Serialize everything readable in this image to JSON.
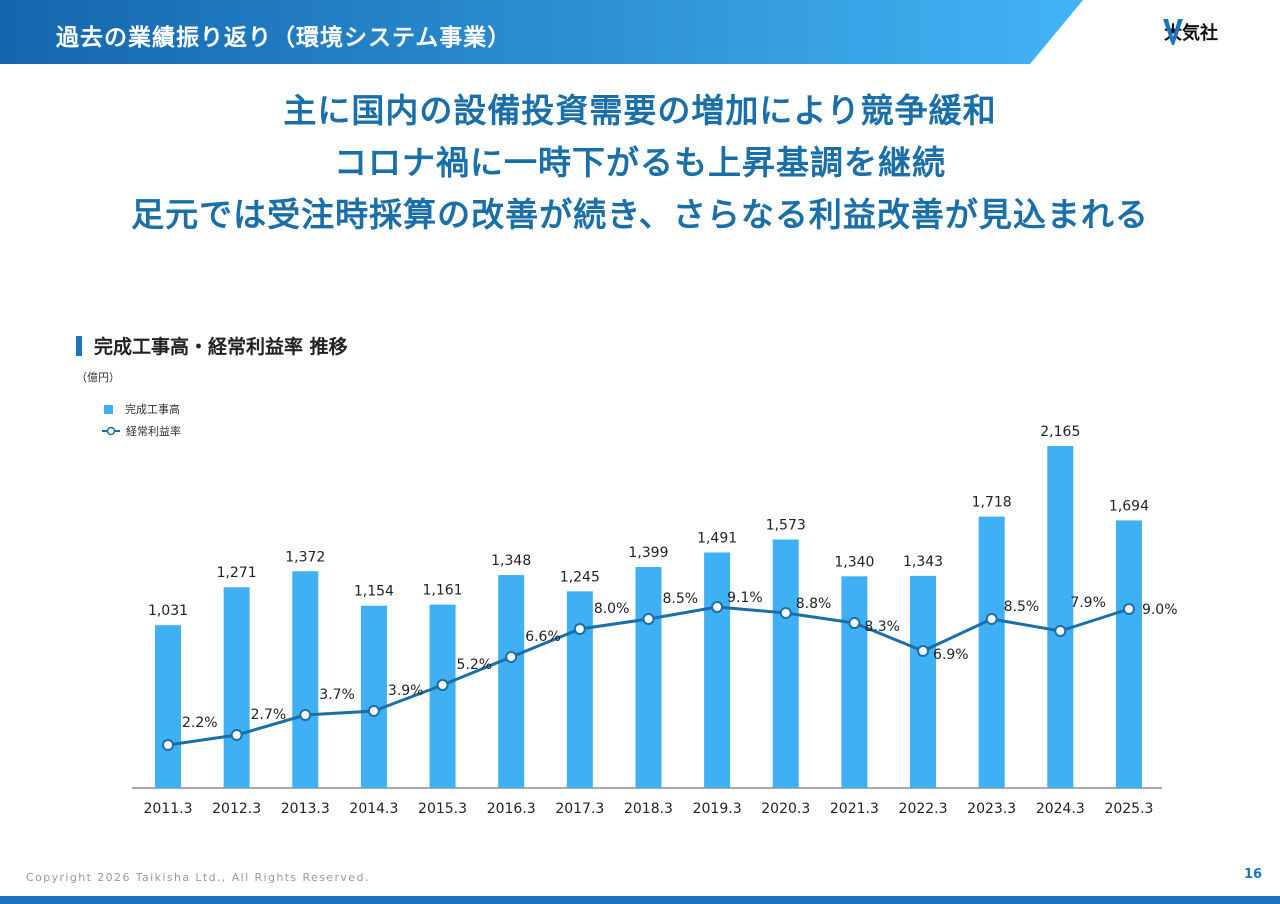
{
  "header": {
    "title": "過去の業績振り返り（環境システム事業）",
    "logo_text": "大気社",
    "accent_color": "#1e73be",
    "accent_light": "#3fb0f4"
  },
  "headline": {
    "line1": "主に国内の設備投資需要の増加により競争緩和",
    "line2": "コロナ禍に一時下がるも上昇基調を継続",
    "line3": "足元では受注時採算の改善が続き、さらなる利益改善が見込まれる"
  },
  "section": {
    "title": "完成工事高・経常利益率 推移",
    "unit": "（億円）"
  },
  "legend": {
    "bar_label": "完成工事高",
    "line_label": "経常利益率"
  },
  "chart_data": {
    "type": "bar",
    "title": "完成工事高・経常利益率 推移",
    "ylabel": "（億円）",
    "categories": [
      "2011.3",
      "2012.3",
      "2013.3",
      "2014.3",
      "2015.3",
      "2016.3",
      "2017.3",
      "2018.3",
      "2019.3",
      "2020.3",
      "2021.3",
      "2022.3",
      "2023.3",
      "2024.3",
      "2025.3"
    ],
    "series": [
      {
        "name": "完成工事高",
        "type": "bar",
        "values": [
          1031,
          1271,
          1372,
          1154,
          1161,
          1348,
          1245,
          1399,
          1491,
          1573,
          1340,
          1343,
          1718,
          2165,
          1694
        ],
        "labels": [
          "1,031",
          "1,271",
          "1,372",
          "1,154",
          "1,161",
          "1,348",
          "1,245",
          "1,399",
          "1,491",
          "1,573",
          "1,340",
          "1,343",
          "1,718",
          "2,165",
          "1,694"
        ],
        "color": "#3fb0f4"
      },
      {
        "name": "経常利益率",
        "type": "line",
        "values": [
          2.2,
          2.7,
          3.7,
          3.9,
          5.2,
          6.6,
          8.0,
          8.5,
          9.1,
          8.8,
          8.3,
          6.9,
          8.5,
          7.9,
          9.0
        ],
        "labels": [
          "2.2%",
          "2.7%",
          "3.7%",
          "3.9%",
          "5.2%",
          "6.6%",
          "8.0%",
          "8.5%",
          "9.1%",
          "8.8%",
          "8.3%",
          "6.9%",
          "8.5%",
          "7.9%",
          "9.0%"
        ],
        "color": "#1a6fa8"
      }
    ],
    "ylim": [
      0,
      2300
    ],
    "y2lim": [
      -3,
      12
    ],
    "grid": false,
    "legend_position": "top-left"
  },
  "footer": {
    "copyright": "Copyright  2026 Taikisha Ltd., All Rights Reserved.",
    "page": "16"
  }
}
